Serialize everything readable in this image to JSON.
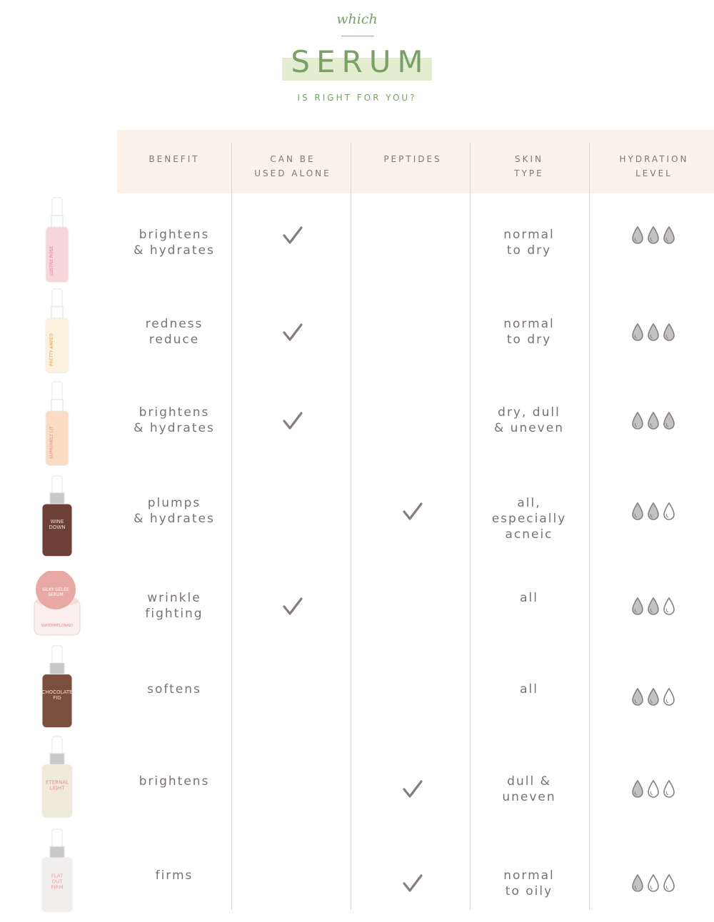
{
  "title": {
    "kicker": "which",
    "main": "SERUM",
    "subtitle": "IS RIGHT FOR YOU?"
  },
  "colors": {
    "accent": "#7ba067",
    "highlight": "#e3edd0",
    "header_bg": "#fdf2ea",
    "text": "#7a7272",
    "drop_fill": "#c4c1c1",
    "drop_stroke": "#868080"
  },
  "columns": [
    "BENEFIT",
    "CAN BE\nUSED ALONE",
    "PEPTIDES",
    "SKIN\nTYPE",
    "HYDRATION\nLEVEL"
  ],
  "rows": [
    {
      "product": "LUSTRE ROSE",
      "benefit": "brightens\n& hydrates",
      "used_alone": true,
      "peptides": false,
      "skin_type": "normal\nto dry",
      "hydration": 3
    },
    {
      "product": "PRETTY AMPED",
      "benefit": "redness\nreduce",
      "used_alone": true,
      "peptides": false,
      "skin_type": "normal\nto dry",
      "hydration": 3
    },
    {
      "product": "SUPREMELY LIT",
      "benefit": "brightens\n& hydrates",
      "used_alone": true,
      "peptides": false,
      "skin_type": "dry, dull\n& uneven",
      "hydration": 3
    },
    {
      "product": "WINE DOWN",
      "benefit": "plumps\n& hydrates",
      "used_alone": false,
      "peptides": true,
      "skin_type": "all,\nespecially\nacneic",
      "hydration": 2
    },
    {
      "product": "SILKY GELÉE SERUM WATERMELONAID",
      "benefit": "wrinkle\nfighting",
      "used_alone": true,
      "peptides": false,
      "skin_type": "all",
      "hydration": 2
    },
    {
      "product": "CHOCOLATE FIG",
      "benefit": "softens",
      "used_alone": false,
      "peptides": false,
      "skin_type": "all",
      "hydration": 2
    },
    {
      "product": "ETERNAL LIGHT",
      "benefit": "brightens",
      "used_alone": false,
      "peptides": true,
      "skin_type": "dull &\nuneven",
      "hydration": 1
    },
    {
      "product": "FLAT OUT FIRM",
      "benefit": "firms",
      "used_alone": false,
      "peptides": true,
      "skin_type": "normal\nto oily",
      "hydration": 1
    }
  ]
}
